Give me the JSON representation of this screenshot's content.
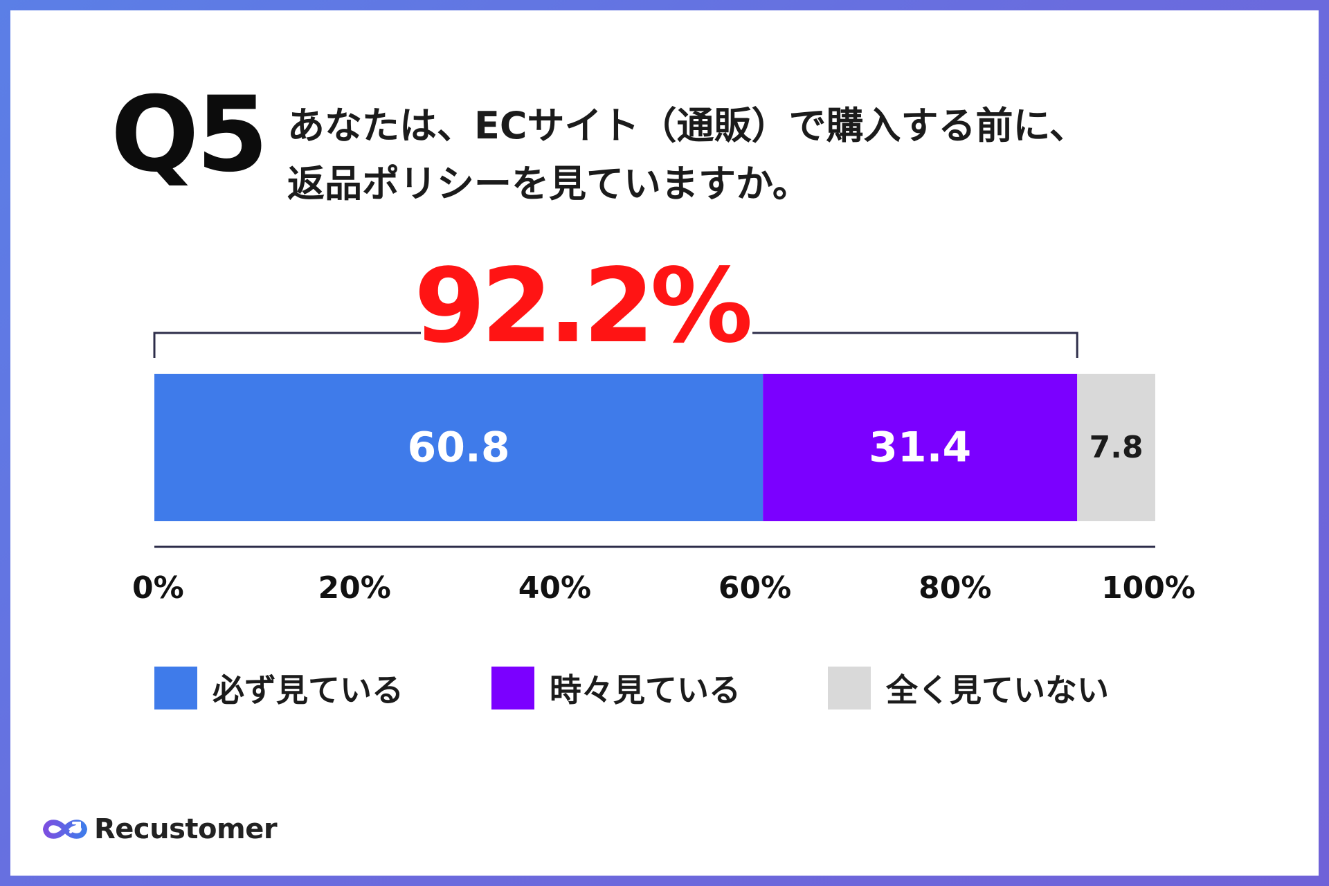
{
  "question": {
    "label": "Q5",
    "line1": "あなたは、ECサイト（通販）で購入する前に、",
    "line2": "返品ポリシーを見ていますか。"
  },
  "highlight": {
    "text": "92.2%",
    "value": 92.2,
    "color": "#ff1414"
  },
  "chart_data": {
    "type": "bar",
    "orientation": "horizontal-stacked",
    "series": [
      {
        "name": "必ず見ている",
        "value": 60.8,
        "color": "#3f7bea",
        "label_color": "#ffffff"
      },
      {
        "name": "時々見ている",
        "value": 31.4,
        "color": "#7b00ff",
        "label_color": "#ffffff"
      },
      {
        "name": "全く見ていない",
        "value": 7.8,
        "color": "#d9d9d9",
        "label_color": "#1b1b1b"
      }
    ],
    "xlim": [
      0,
      100
    ],
    "xticks": [
      {
        "value": 0,
        "label": "0%"
      },
      {
        "value": 20,
        "label": "20%"
      },
      {
        "value": 40,
        "label": "40%"
      },
      {
        "value": 60,
        "label": "60%"
      },
      {
        "value": 80,
        "label": "80%"
      },
      {
        "value": 100,
        "label": "100%"
      }
    ],
    "bracket": {
      "from": 0,
      "to": 92.2
    },
    "legend_position": "bottom"
  },
  "legend": [
    {
      "label": "必ず見ている",
      "color": "#3f7bea"
    },
    {
      "label": "時々見ている",
      "color": "#7b00ff"
    },
    {
      "label": "全く見ていない",
      "color": "#d9d9d9"
    }
  ],
  "brand": {
    "name": "Recustomer",
    "logo_icon": "infinity-arrow-icon",
    "frame_color": "#5b7fe6"
  }
}
